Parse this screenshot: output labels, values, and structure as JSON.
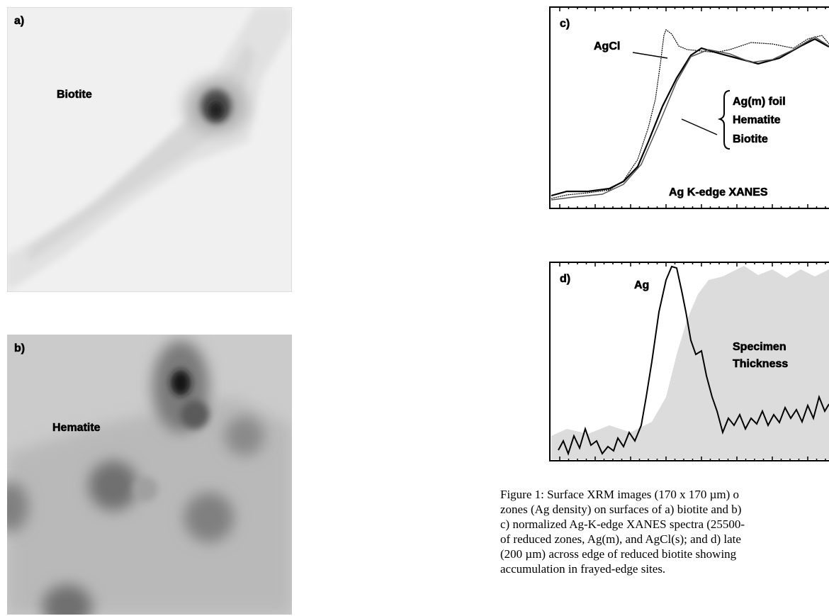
{
  "panels": [
    {
      "label": "a)",
      "annotations": [
        "Biotite"
      ]
    },
    {
      "label": "b)",
      "annotations": [
        "Hematite"
      ]
    },
    {
      "label": "c)",
      "annotations": [
        "AgCl",
        "Ag(m) foil",
        "Hematite",
        "Biotite",
        "Ag K-edge XANES"
      ]
    },
    {
      "label": "d)",
      "annotations": [
        "Ag",
        "Specimen",
        "Thickness"
      ]
    }
  ],
  "caption": {
    "lines": [
      "Figure 1:  Surface XRM images (170 x 170 µm) o",
      "zones (Ag density) on surfaces of a) biotite and b)",
      "c) normalized Ag-K-edge XANES spectra (25500-",
      "of reduced zones, Ag(m), and AgCl(s); and d) late",
      "(200 µm) across edge of reduced biotite showing",
      "accumulation in frayed-edge sites."
    ]
  }
}
